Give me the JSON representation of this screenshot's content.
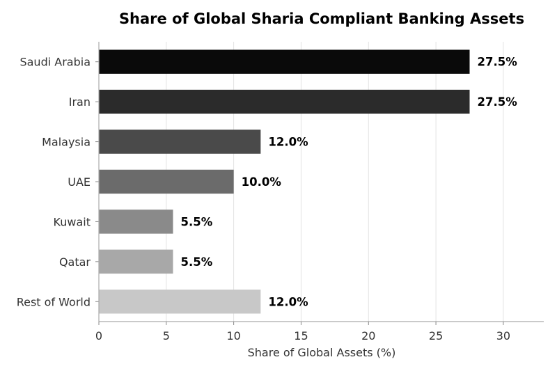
{
  "chart_data": {
    "type": "bar",
    "orientation": "horizontal",
    "title": "Share of Global Sharia Compliant Banking Assets",
    "xlabel": "Share of Global Assets (%)",
    "ylabel": "",
    "xlim": [
      0,
      33
    ],
    "xticks": [
      0,
      5,
      10,
      15,
      20,
      25,
      30
    ],
    "grid": "vertical",
    "categories": [
      "Saudi Arabia",
      "Iran",
      "Malaysia",
      "UAE",
      "Kuwait",
      "Qatar",
      "Rest of World"
    ],
    "values": [
      27.5,
      27.5,
      12.0,
      10.0,
      5.5,
      5.5,
      12.0
    ],
    "data_labels": [
      "27.5%",
      "27.5%",
      "12.0%",
      "10.0%",
      "5.5%",
      "5.5%",
      "12.0%"
    ],
    "colors": [
      "#0a0a0a",
      "#2b2b2b",
      "#4a4a4a",
      "#6b6b6b",
      "#8a8a8a",
      "#a8a8a8",
      "#c8c8c8"
    ]
  }
}
